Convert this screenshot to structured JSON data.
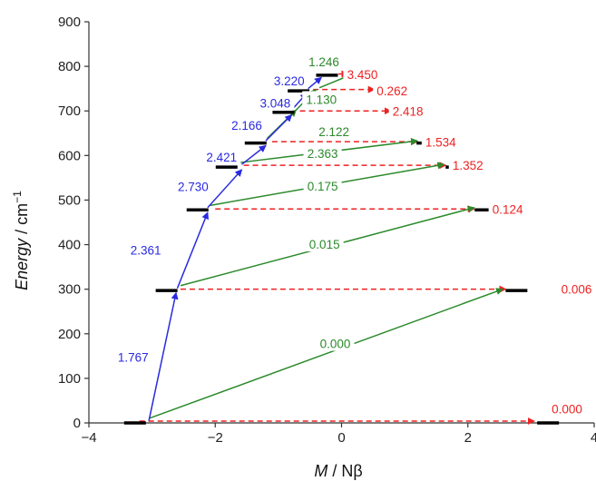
{
  "chart_data": {
    "type": "diagram",
    "xlabel_prefix": "M",
    "xlabel_suffix": " / Nβ",
    "ylabel_prefix": "Energy",
    "ylabel_suffix": " / cm",
    "ylabel_superscript": "−1",
    "xlim": [
      -4,
      4
    ],
    "ylim": [
      0,
      900
    ],
    "x_ticks": [
      -4,
      -2,
      0,
      2,
      4
    ],
    "y_ticks": [
      0,
      100,
      200,
      300,
      400,
      500,
      600,
      700,
      800,
      900
    ],
    "colors": {
      "levels": "#000000",
      "blue": "#2a2ae0",
      "green": "#2b8a2b",
      "red": "#ee2222",
      "axis": "#333333"
    },
    "levels": [
      {
        "m": -3.27,
        "e": 0
      },
      {
        "m": 3.27,
        "e": 0
      },
      {
        "m": -2.77,
        "e": 297
      },
      {
        "m": 2.77,
        "e": 297
      },
      {
        "m": -2.28,
        "e": 478
      },
      {
        "m": 2.28,
        "e": 478
      },
      {
        "m": -1.82,
        "e": 574
      },
      {
        "m": 1.82,
        "e": 574
      },
      {
        "m": -1.36,
        "e": 628
      },
      {
        "m": 1.36,
        "e": 628
      },
      {
        "m": -0.92,
        "e": 697
      },
      {
        "m": 0.92,
        "e": 697
      },
      {
        "m": -0.68,
        "e": 745
      },
      {
        "m": 0.68,
        "e": 745
      },
      {
        "m": -0.23,
        "e": 780
      },
      {
        "m": 0.23,
        "e": 780
      }
    ],
    "blue_arrows": [
      {
        "from": [
          -3.05,
          5
        ],
        "to": [
          -2.62,
          292
        ],
        "label": "1.767",
        "lx": -3.3,
        "ly": 148
      },
      {
        "from": [
          -2.6,
          302
        ],
        "to": [
          -2.12,
          472
        ],
        "label": "2.361",
        "lx": -3.1,
        "ly": 388
      },
      {
        "from": [
          -2.12,
          483
        ],
        "to": [
          -1.58,
          568
        ],
        "label": "2.730",
        "lx": -2.35,
        "ly": 530
      },
      {
        "from": [
          -1.58,
          580
        ],
        "to": [
          -1.2,
          622
        ],
        "label": "2.421",
        "lx": -1.9,
        "ly": 597
      },
      {
        "from": [
          -1.2,
          633
        ],
        "to": [
          -0.79,
          691
        ],
        "label": "2.166",
        "lx": -1.5,
        "ly": 668
      },
      {
        "from": [
          -0.79,
          702
        ],
        "to": [
          -0.55,
          740
        ],
        "label": "3.048",
        "lx": -1.05,
        "ly": 718
      },
      {
        "from": [
          -0.53,
          750
        ],
        "to": [
          -0.32,
          775
        ],
        "label": "3.220",
        "lx": -0.83,
        "ly": 768
      }
    ],
    "green_arrows": [
      {
        "from": [
          -3.05,
          10
        ],
        "to": [
          2.55,
          300
        ],
        "label": "0.000",
        "lx": -0.1,
        "ly": 178
      },
      {
        "from": [
          -2.55,
          308
        ],
        "to": [
          2.1,
          483
        ],
        "label": "0.015",
        "lx": -0.27,
        "ly": 401
      },
      {
        "from": [
          -2.08,
          488
        ],
        "to": [
          1.62,
          580
        ],
        "label": "0.175",
        "lx": -0.3,
        "ly": 531
      },
      {
        "from": [
          -1.62,
          584
        ],
        "to": [
          1.2,
          633
        ],
        "label": "2.363",
        "lx": -0.3,
        "ly": 605
      },
      {
        "from": [
          -1.18,
          638
        ],
        "to": [
          -0.72,
          702
        ],
        "label": "2.122",
        "lx": -0.12,
        "ly": 654
      },
      {
        "from": [
          -0.72,
          702
        ],
        "to": [
          -0.4,
          748
        ],
        "label": "1.130",
        "lx": -0.32,
        "ly": 726
      },
      {
        "from": [
          -0.35,
          752
        ],
        "to": [
          0.2,
          784
        ],
        "label": "1.246",
        "lx": -0.28,
        "ly": 810
      }
    ],
    "red_arrows": [
      {
        "from": [
          -3.2,
          4
        ],
        "to": [
          3.05,
          4
        ],
        "label": "0.000",
        "lx": 3.57,
        "ly": 32
      },
      {
        "from": [
          -2.55,
          300
        ],
        "to": [
          2.6,
          300
        ],
        "label": "0.006",
        "lx": 3.72,
        "ly": 300
      },
      {
        "from": [
          -2.0,
          480
        ],
        "to": [
          2.1,
          480
        ],
        "label": "0.124",
        "lx": 2.63,
        "ly": 480
      },
      {
        "from": [
          -1.55,
          578
        ],
        "to": [
          1.65,
          578
        ],
        "label": "1.352",
        "lx": 2.0,
        "ly": 578
      },
      {
        "from": [
          -1.1,
          631
        ],
        "to": [
          1.2,
          631
        ],
        "label": "1.534",
        "lx": 1.57,
        "ly": 630
      },
      {
        "from": [
          -0.66,
          700
        ],
        "to": [
          0.78,
          700
        ],
        "label": "2.418",
        "lx": 1.05,
        "ly": 699
      },
      {
        "from": [
          -0.45,
          748
        ],
        "to": [
          0.52,
          748
        ],
        "label": "0.262",
        "lx": 0.8,
        "ly": 745
      },
      {
        "from": [
          -0.05,
          783
        ],
        "to": [
          0.1,
          783
        ],
        "label": "3.450",
        "lx": 0.33,
        "ly": 782
      }
    ]
  }
}
